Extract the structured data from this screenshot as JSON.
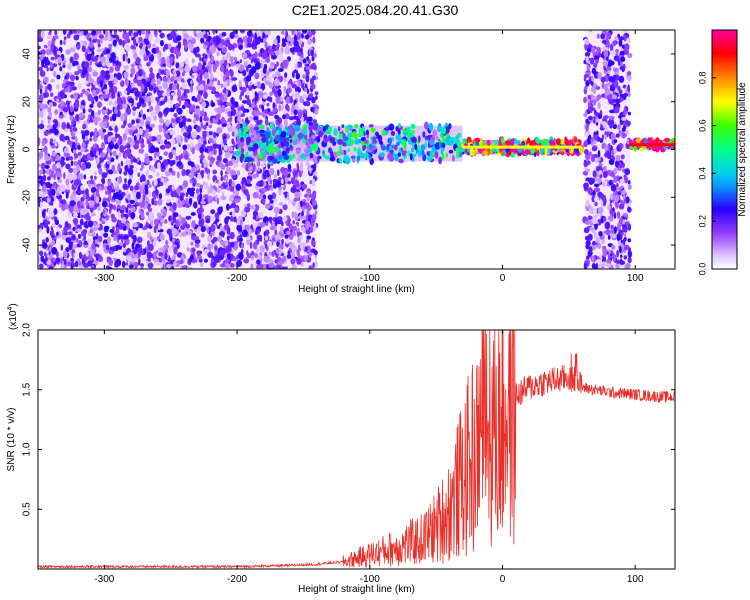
{
  "title": "C2E1.2025.084.20.41.G30",
  "chart_data": [
    {
      "type": "heatmap",
      "title": "C2E1.2025.084.20.41.G30",
      "xlabel": "Height of straight line (km)",
      "ylabel": "Frequency (Hz)",
      "xlim": [
        -350,
        130
      ],
      "ylim": [
        -50,
        50
      ],
      "x_ticks": [
        -300,
        -200,
        -100,
        0,
        100
      ],
      "y_ticks": [
        -40,
        -20,
        0,
        20,
        40
      ],
      "colorbar": {
        "label": "Normalized spectral amplitude",
        "range": [
          0,
          1
        ],
        "ticks": [
          0.0,
          0.2,
          0.4,
          0.6,
          0.8
        ],
        "tick_labels": [
          "0.0",
          "0.2",
          "0.4",
          "0.6",
          "0.8"
        ]
      },
      "regions": [
        {
          "name": "broadband-noise-left",
          "x": [
            -350,
            -140
          ],
          "freq": [
            -50,
            50
          ],
          "amplitude": 0.15
        },
        {
          "name": "signal-band",
          "x": [
            -200,
            -30
          ],
          "freq": [
            -5,
            10
          ],
          "amplitude": 0.35
        },
        {
          "name": "strong-carrier",
          "x": [
            -30,
            60
          ],
          "freq": [
            -2,
            4
          ],
          "amplitude": 0.7
        },
        {
          "name": "broadband-noise-right",
          "x": [
            62,
            96
          ],
          "freq": [
            -50,
            50
          ],
          "amplitude": 0.15
        },
        {
          "name": "strong-carrier-right",
          "x": [
            96,
            130
          ],
          "freq": [
            0,
            4
          ],
          "amplitude": 0.9
        }
      ]
    },
    {
      "type": "line",
      "xlabel": "Height of straight line (km)",
      "ylabel": "SNR (10 * v/v)",
      "y_multiplier": "(x10",
      "y_multiplier_exp": "4",
      "xlim": [
        -350,
        130
      ],
      "ylim": [
        0,
        2.0
      ],
      "x_ticks": [
        -300,
        -200,
        -100,
        0,
        100
      ],
      "y_ticks": [
        0.5,
        1.0,
        1.5,
        2.0
      ],
      "y_tick_labels": [
        "0.5",
        "1.0",
        "1.5",
        "2.0"
      ],
      "color": "#e8302a",
      "series": [
        {
          "name": "SNR",
          "x": [
            -350,
            -300,
            -250,
            -200,
            -160,
            -140,
            -120,
            -100,
            -80,
            -60,
            -50,
            -40,
            -30,
            -20,
            -15,
            -10,
            -5,
            0,
            10,
            20,
            30,
            40,
            50,
            55,
            60,
            70,
            80,
            90,
            100,
            110,
            120,
            130
          ],
          "y": [
            0.02,
            0.02,
            0.02,
            0.02,
            0.03,
            0.04,
            0.06,
            0.12,
            0.18,
            0.25,
            0.35,
            0.5,
            0.75,
            1.0,
            1.25,
            1.3,
            1.2,
            1.35,
            1.45,
            1.52,
            1.56,
            1.58,
            1.6,
            1.58,
            1.52,
            1.5,
            1.48,
            1.47,
            1.46,
            1.45,
            1.44,
            1.44
          ]
        }
      ]
    }
  ]
}
